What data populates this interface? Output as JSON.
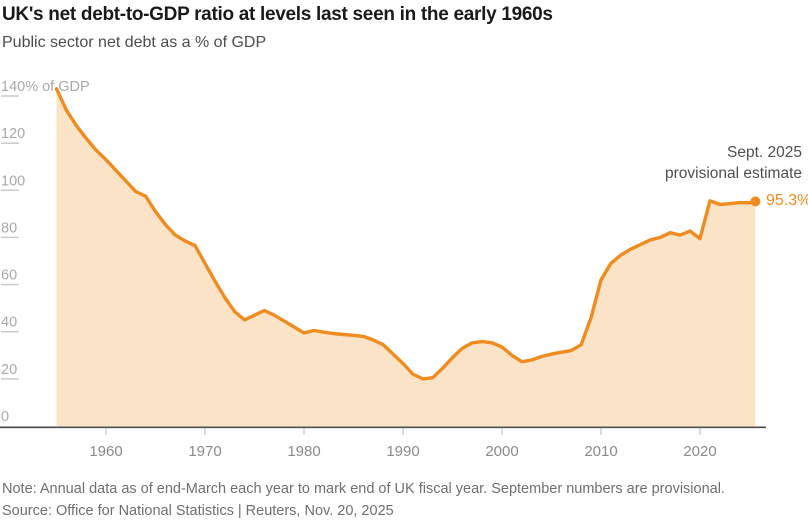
{
  "page": {
    "title": "UK's net debt-to-GDP ratio at levels last seen in the early 1960s",
    "subtitle": "Public sector net debt as a % of GDP"
  },
  "annotation": {
    "line1": "Sept. 2025",
    "line2": "provisional estimate",
    "value_label": "95.3%"
  },
  "footer": {
    "note": "Note: Annual data as of end-March each year to mark end of UK fiscal year. September numbers are provisional.",
    "source": "Source: Office for National Statistics | Reuters, Nov. 20, 2025"
  },
  "colors": {
    "accent_orange": "#ef8b1f",
    "area_fill": "#fbe3c8",
    "title_text": "#1a1a1a",
    "subtitle_text": "#4d4d4d",
    "annotation_text": "#4f4f4f",
    "y_axis_label": "#a9a9a9",
    "x_axis_label": "#8a8a8a",
    "tick": "#cbcbcb",
    "baseline": "#4a4a4a",
    "note_text": "#6f6f6f"
  },
  "chart_data": {
    "type": "area",
    "title": "UK's net debt-to-GDP ratio at levels last seen in the early 1960s",
    "subtitle": "Public sector net debt as a % of GDP",
    "xlabel": "",
    "ylabel": "% of GDP",
    "ylim": [
      0,
      140
    ],
    "xlim": [
      1955,
      2026.5
    ],
    "grid": false,
    "legend": "none",
    "y_ticks": [
      0,
      20,
      40,
      60,
      80,
      100,
      120,
      140
    ],
    "y_axis_top_label": "140% of GDP",
    "x_ticks": [
      1960,
      1970,
      1980,
      1990,
      2000,
      2010,
      2020
    ],
    "x": [
      1955,
      1956,
      1957,
      1958,
      1959,
      1960,
      1961,
      1962,
      1963,
      1964,
      1965,
      1966,
      1967,
      1968,
      1969,
      1970,
      1971,
      1972,
      1973,
      1974,
      1975,
      1976,
      1977,
      1978,
      1979,
      1980,
      1981,
      1982,
      1983,
      1984,
      1985,
      1986,
      1987,
      1988,
      1989,
      1990,
      1991,
      1992,
      1993,
      1994,
      1995,
      1996,
      1997,
      1998,
      1999,
      2000,
      2001,
      2002,
      2003,
      2004,
      2005,
      2006,
      2007,
      2008,
      2009,
      2010,
      2011,
      2012,
      2013,
      2014,
      2015,
      2016,
      2017,
      2018,
      2019,
      2020,
      2021,
      2022,
      2023,
      2024,
      2025,
      2025.6
    ],
    "values": [
      143,
      134,
      127.5,
      122,
      117,
      113,
      108.5,
      104,
      99.5,
      97.5,
      91,
      85.5,
      81,
      78.5,
      76.5,
      69,
      61.5,
      54.5,
      48.5,
      45,
      47,
      49,
      47,
      44.5,
      42,
      39.5,
      40.5,
      39.8,
      39.2,
      38.8,
      38.5,
      38,
      36.5,
      34.5,
      30.5,
      26.5,
      22,
      20,
      20.5,
      24.5,
      29,
      33,
      35.3,
      35.8,
      35.3,
      33.5,
      30,
      27.3,
      28,
      29.5,
      30.5,
      31.3,
      32,
      34.5,
      46,
      62,
      69,
      72.5,
      75,
      77,
      79,
      80,
      82,
      81,
      82.7,
      79.5,
      95.5,
      94,
      94.3,
      94.8,
      94.7,
      95.3
    ],
    "end_point": {
      "x": 2025.6,
      "value": 95.3,
      "label": "95.3%",
      "annotation": "Sept. 2025 provisional estimate"
    }
  }
}
